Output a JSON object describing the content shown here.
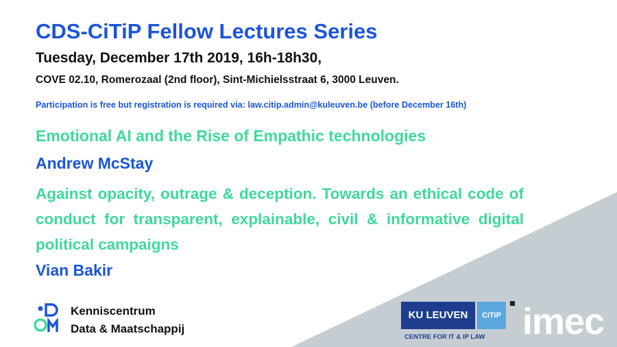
{
  "header": {
    "title": "CDS-CiTiP Fellow Lectures Series",
    "date": "Tuesday, December 17th 2019, 16h-18h30,",
    "location": "COVE 02.10, Romerozaal (2nd floor), Sint-Michielsstraat 6, 3000 Leuven.",
    "registration": "Participation is free but registration is required via: law.citip.admin@kuleuven.be (before December 16th)"
  },
  "talks": [
    {
      "title": "Emotional AI and the Rise of Empathic technologies",
      "speaker": "Andrew McStay"
    },
    {
      "title": "Against opacity, outrage & deception. Towards an ethical code of conduct for transparent, explainable, civil & informative digital political campaigns",
      "speaker": "Vian Bakir"
    }
  ],
  "logos": {
    "kenniscentrum": [
      "Kenniscentrum",
      "Data & Maatschappij"
    ],
    "ku_leuven": "KU LEUVEN",
    "citip": "CiTiP",
    "citip_subtitle": "CENTRE FOR IT & IP LAW",
    "imec": "imec"
  }
}
